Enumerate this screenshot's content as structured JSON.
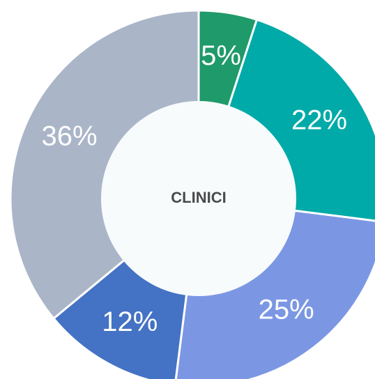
{
  "chart_data": {
    "type": "donut",
    "center_label": "CLINICI",
    "values": [
      5,
      22,
      25,
      12,
      36
    ],
    "value_labels": [
      "5%",
      "22%",
      "25%",
      "12%",
      "36%"
    ],
    "colors": [
      "#1f9a6a",
      "#00aaa8",
      "#7b97e4",
      "#4472c4",
      "#aab5c8"
    ]
  }
}
